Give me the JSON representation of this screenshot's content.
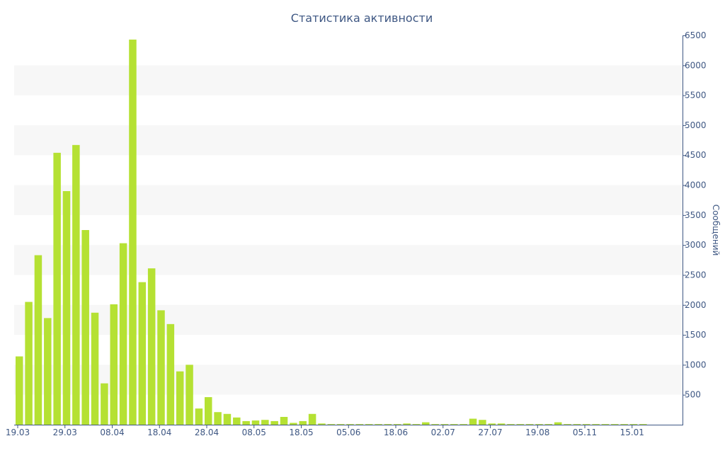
{
  "chart_data": {
    "type": "bar",
    "title": "Статистика активности",
    "xlabel": "",
    "ylabel": "Сообщений",
    "ylim": [
      0,
      6500
    ],
    "y_ticks": [
      500,
      1000,
      1500,
      2000,
      2500,
      3000,
      3500,
      4000,
      4500,
      5000,
      5500,
      6000,
      6500
    ],
    "x_tick_labels": [
      "19.03",
      "29.03",
      "08.04",
      "18.04",
      "28.04",
      "08.05",
      "18.05",
      "05.06",
      "18.06",
      "02.07",
      "27.07",
      "19.08",
      "05.11",
      "15.01"
    ],
    "y_axis_position": "right",
    "grid": "alternating horizontal bands",
    "colors": {
      "bar": "#b5e133",
      "text": "#3e5783",
      "band": "#f7f7f7",
      "axis": "#3e5783"
    },
    "series": [
      {
        "values": [
          1140,
          2050,
          2830,
          1780,
          4540,
          3900,
          4670,
          3250,
          1870,
          690,
          2010,
          3030,
          6430,
          2380,
          2610,
          1910,
          1680,
          890,
          1000,
          270,
          460,
          210,
          180,
          120,
          60,
          70,
          80,
          60,
          130,
          30,
          60,
          180,
          20,
          10,
          10,
          10,
          10,
          10,
          10,
          10,
          10,
          20,
          10,
          40,
          10,
          10,
          10,
          10,
          100,
          80,
          20,
          20,
          10,
          10,
          10,
          10,
          10,
          40,
          10,
          10,
          10,
          10,
          10,
          10,
          10,
          10,
          10
        ]
      }
    ]
  }
}
